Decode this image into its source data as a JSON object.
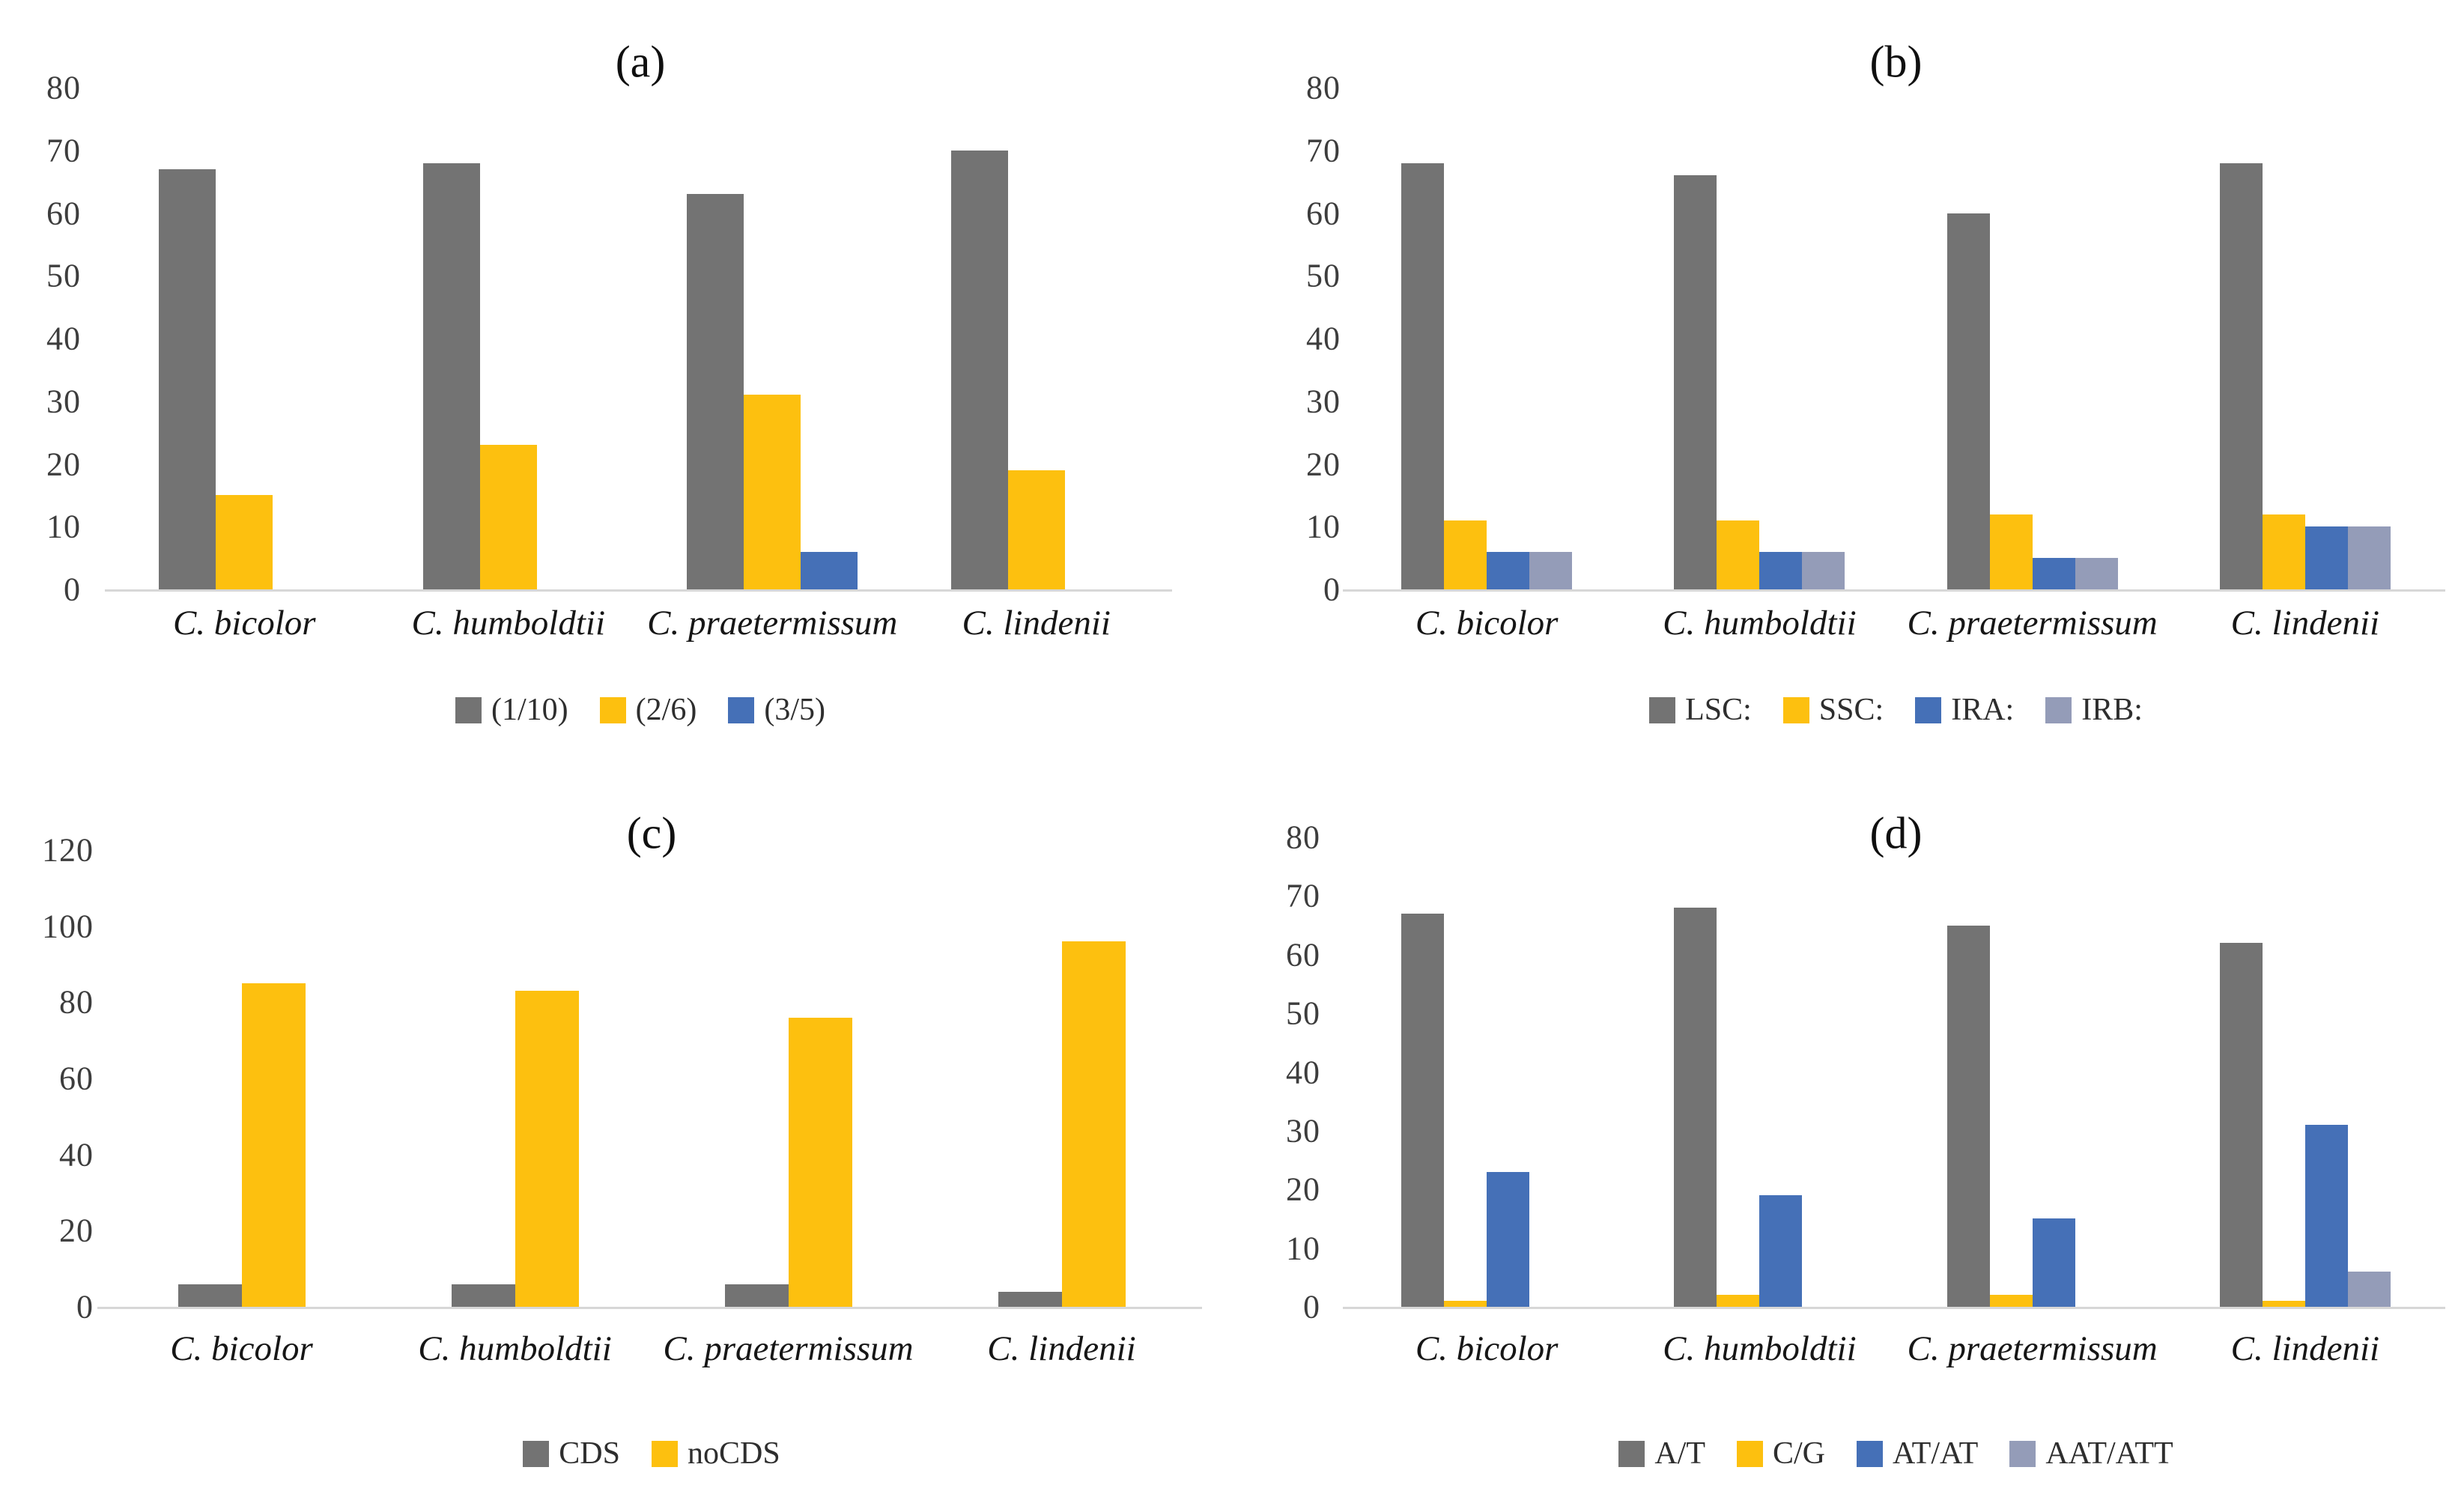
{
  "figure": {
    "background": "#ffffff",
    "species_label_style": "italic",
    "palette": {
      "gray": "#737373",
      "yellow": "#fdc00f",
      "blue": "#4570b7",
      "gray_blue": "#949cb8",
      "baseline": "#d7d7d7"
    }
  },
  "chart_data": [
    {
      "id": "a",
      "type": "bar",
      "title": "(a)",
      "categories": [
        "C. bicolor",
        "C. humboldtii",
        "C. praetermissum",
        "C. lindenii"
      ],
      "series": [
        {
          "name": "(1/10)",
          "color": "#737373",
          "values": [
            67,
            68,
            63,
            70
          ]
        },
        {
          "name": "(2/6)",
          "color": "#fdc00f",
          "values": [
            15,
            23,
            31,
            19
          ]
        },
        {
          "name": "(3/5)",
          "color": "#4570b7",
          "values": [
            0,
            0,
            6,
            0
          ]
        }
      ],
      "ylim": [
        0,
        80
      ],
      "yticks": [
        0,
        10,
        20,
        30,
        40,
        50,
        60,
        70,
        80
      ],
      "grid": false,
      "legend_position": "bottom"
    },
    {
      "id": "b",
      "type": "bar",
      "title": "(b)",
      "categories": [
        "C. bicolor",
        "C. humboldtii",
        "C. praetermissum",
        "C. lindenii"
      ],
      "series": [
        {
          "name": "LSC:",
          "color": "#737373",
          "values": [
            68,
            66,
            60,
            68
          ]
        },
        {
          "name": "SSC:",
          "color": "#fdc00f",
          "values": [
            11,
            11,
            12,
            12
          ]
        },
        {
          "name": "IRA:",
          "color": "#4570b7",
          "values": [
            6,
            6,
            5,
            10
          ]
        },
        {
          "name": "IRB:",
          "color": "#949cb8",
          "values": [
            6,
            6,
            5,
            10
          ]
        }
      ],
      "ylim": [
        0,
        80
      ],
      "yticks": [
        0,
        10,
        20,
        30,
        40,
        50,
        60,
        70,
        80
      ],
      "grid": false,
      "legend_position": "bottom"
    },
    {
      "id": "c",
      "type": "bar",
      "title": "(c)",
      "categories": [
        "C. bicolor",
        "C. humboldtii",
        "C. praetermissum",
        "C. lindenii"
      ],
      "series": [
        {
          "name": "CDS",
          "color": "#737373",
          "values": [
            6,
            6,
            6,
            4
          ]
        },
        {
          "name": "noCDS",
          "color": "#fdc00f",
          "values": [
            85,
            83,
            76,
            96
          ]
        }
      ],
      "ylim": [
        0,
        120
      ],
      "yticks": [
        0,
        20,
        40,
        60,
        80,
        100,
        120
      ],
      "grid": false,
      "legend_position": "bottom"
    },
    {
      "id": "d",
      "type": "bar",
      "title": "(d)",
      "categories": [
        "C. bicolor",
        "C. humboldtii",
        "C. praetermissum",
        "C. lindenii"
      ],
      "series": [
        {
          "name": "A/T",
          "color": "#737373",
          "values": [
            67,
            68,
            65,
            62
          ]
        },
        {
          "name": "C/G",
          "color": "#fdc00f",
          "values": [
            1,
            2,
            2,
            1
          ]
        },
        {
          "name": "AT/AT",
          "color": "#4570b7",
          "values": [
            23,
            19,
            15,
            31
          ]
        },
        {
          "name": "AAT/ATT",
          "color": "#949cb8",
          "values": [
            0,
            0,
            0,
            6
          ]
        }
      ],
      "ylim": [
        0,
        80
      ],
      "yticks": [
        0,
        10,
        20,
        30,
        40,
        50,
        60,
        70,
        80
      ],
      "grid": false,
      "legend_position": "bottom"
    }
  ]
}
